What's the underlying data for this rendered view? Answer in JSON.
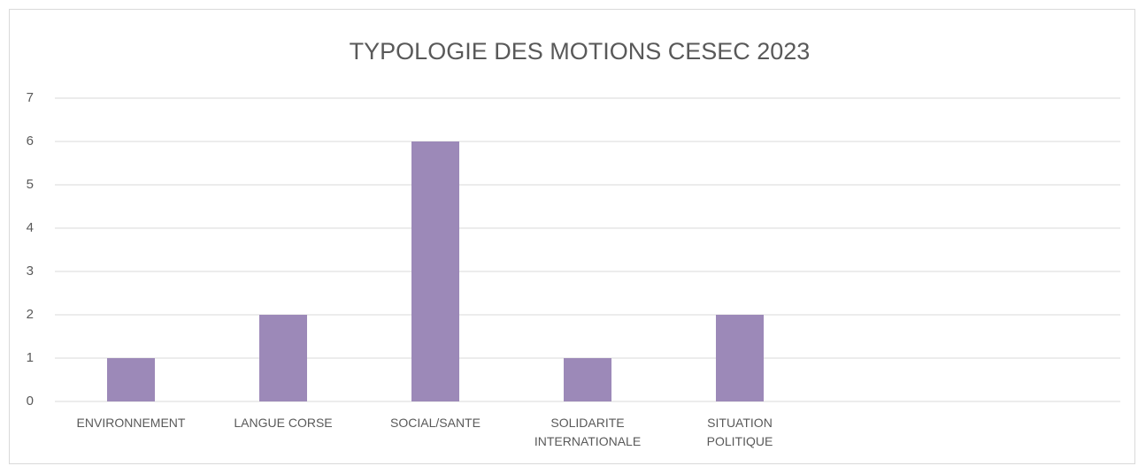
{
  "chart_data": {
    "type": "bar",
    "title": "TYPOLOGIE DES MOTIONS CESEC 2023",
    "categories": [
      "ENVIRONNEMENT",
      "LANGUE CORSE",
      "SOCIAL/SANTE",
      "SOLIDARITE INTERNATIONALE",
      "SITUATION POLITIQUE",
      null,
      null
    ],
    "values": [
      1,
      2,
      6,
      1,
      2,
      null,
      null
    ],
    "color": "#9c89b8",
    "ylim": [
      0,
      7
    ],
    "yticks": [
      0,
      1,
      2,
      3,
      4,
      5,
      6,
      7
    ],
    "grid": true
  }
}
